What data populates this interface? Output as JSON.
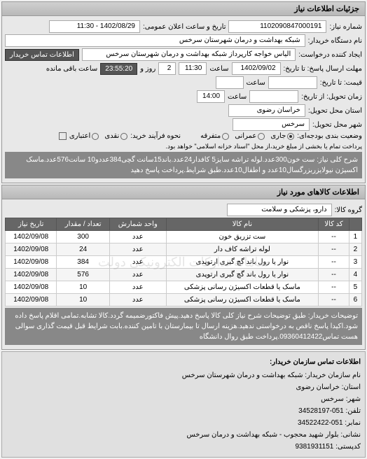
{
  "header": {
    "title": "جزئیات اطلاعات نیاز"
  },
  "need": {
    "number_label": "شماره نیاز:",
    "number": "1102090847000191",
    "announce_label": "تاریخ و ساعت اعلان عمومی:",
    "announce": "1402/08/29 - 11:30",
    "buyer_org_label": "نام دستگاه خریدار:",
    "buyer_org": "شبکه بهداشت و درمان شهرستان سرخس",
    "requester_label": "ایجاد کننده درخواست:",
    "requester": "الیاس خواجه کارپرداز شبکه بهداشت و درمان شهرستان سرخس",
    "buyer_contact_label": "اطلاعات تماس خریدار",
    "response_deadline_label": "مهلت ارسال پاسخ: تا تاریخ:",
    "response_date": "1402/09/02",
    "time_label": "ساعت",
    "response_time": "11:30",
    "days_label": "روز و",
    "days": "2",
    "remain_time": "23:55:20",
    "remain_label": "ساعت باقی مانده",
    "exact_price_label": "قیمت: تا تاریخ:",
    "delivery_date_label": "زمان تحویل: از تاریخ:",
    "delivery_time": "14:00",
    "delivery_state_label": "استان محل تحویل:",
    "delivery_state": "خراسان رضوی",
    "delivery_city_label": "شهر محل تحویل:",
    "delivery_city": "سرخس",
    "budget_label": "وضعیت بندی بودجه‌ای:",
    "budget_opts": {
      "a": "جاری",
      "b": "عمرانی",
      "c": "متفرقه"
    },
    "credit_label": "نحوه فرآیند خرید:",
    "credit_opts": {
      "a": "نقدی",
      "b": "اعتباری"
    },
    "payment_note": "پرداخت تمام یا بخشی از مبلغ خرید،از محل \"اسناد خزانه اسلامی\" خواهد بود.",
    "desc_label": "شرح کلی نیاز:",
    "desc": "ست خون300عدد.لوله تراشه سایز5 کافدار24عدد.باند15سانت گچی384عددو10 سانت576عدد.ماسک اکسیژن نیولایزربزرگسال10عدد و اطفال10عدد.طبق شرایط.پرداخت پاسخ دهید"
  },
  "goods": {
    "title": "اطلاعات کالاهای مورد نیاز",
    "group_label": "گروه کالا:",
    "group": "دارو، پزشکی و سلامت",
    "watermark": "سامانه تدارکات الکترونیکی دولت",
    "columns": [
      "",
      "کد کالا",
      "نام کالا",
      "واحد شمارش",
      "تعداد / مقدار",
      "تاریخ نیاز"
    ],
    "rows": [
      [
        "1",
        "--",
        "ست تزریق خون",
        "عدد",
        "300",
        "1402/09/08"
      ],
      [
        "2",
        "--",
        "لوله تراشه کاف دار",
        "عدد",
        "24",
        "1402/09/08"
      ],
      [
        "3",
        "--",
        "نوار یا رول باند گچ گیری ارتوپدی",
        "عدد",
        "384",
        "1402/09/08"
      ],
      [
        "4",
        "--",
        "نوار یا رول باند گچ گیری ارتوپدی",
        "عدد",
        "576",
        "1402/09/08"
      ],
      [
        "5",
        "--",
        "ماسک یا قطعات اکسیژن رسانی پزشکی",
        "عدد",
        "10",
        "1402/09/08"
      ],
      [
        "6",
        "--",
        "ماسک یا قطعات اکسیژن رسانی پزشکی",
        "عدد",
        "10",
        "1402/09/08"
      ]
    ]
  },
  "notes": {
    "label": "توضیحات خریدار:",
    "text": "طبق توضیحات شرح نیاز کلی کالا پاسخ دهید.پیش فاکتورضمیمه گردد.کالا تشابه.تمامی اقلام پاسخ داده شود.اکیدا پاسخ ناقص به درخواستی ندهید.هزینه ارسال تا بیمارستان با تامین کننده.بابت شرایط قبل قیمت گذاری سوالی هست تماس09360412422.پرداخت طبق روال دانشگاه"
  },
  "contact": {
    "title": "اطلاعات تماس سازمان خریدار:",
    "org_label": "نام سازمان خریدار:",
    "org": "شبکه بهداشت و درمان شهرستان سرخس",
    "state_label": "استان:",
    "state": "خراسان رضوی",
    "city_label": "شهر:",
    "city": "سرخس",
    "phone_label": "تلفن:",
    "phone": "051-34528197",
    "fax_label": "نمابر:",
    "fax": "051-34522422",
    "address_label": "نشانی:",
    "address": "بلوار شهید محجوب - شبکه بهداشت و درمان سرخس",
    "postal_label": "کدپستی:",
    "postal": "9381931151"
  }
}
